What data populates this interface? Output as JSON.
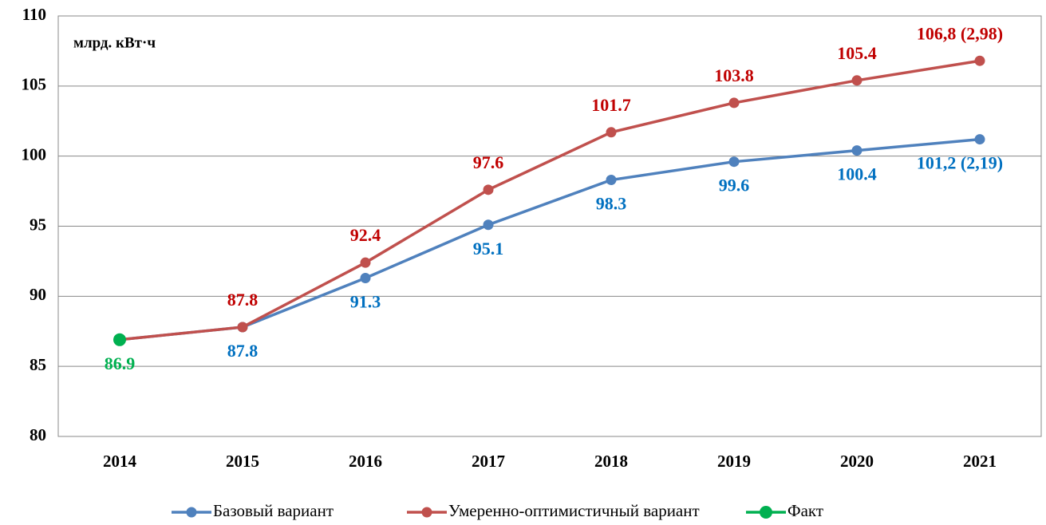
{
  "chart_data": {
    "type": "line",
    "y_label": "млрд. кВт·ч",
    "categories": [
      "2014",
      "2015",
      "2016",
      "2017",
      "2018",
      "2019",
      "2020",
      "2021"
    ],
    "series": [
      {
        "name": "Базовый вариант",
        "color": "#4f81bd",
        "label_color": "#0070c0",
        "label_position": "below",
        "values": [
          86.9,
          87.8,
          91.3,
          95.1,
          98.3,
          99.6,
          100.4,
          101.2
        ],
        "value_labels": [
          null,
          "87.8",
          "91.3",
          "95.1",
          "98.3",
          "99.6",
          "100.4",
          "101,2 (2,19)"
        ]
      },
      {
        "name": "Умеренно-оптимистичный вариант",
        "color": "#c0504d",
        "label_color": "#c00000",
        "label_position": "above",
        "values": [
          86.9,
          87.8,
          92.4,
          97.6,
          101.7,
          103.8,
          105.4,
          106.8
        ],
        "value_labels": [
          null,
          "87.8",
          "92.4",
          "97.6",
          "101.7",
          "103.8",
          "105.4",
          "106,8 (2,98)"
        ]
      },
      {
        "name": "Факт",
        "color": "#00b050",
        "label_color": "#00b050",
        "label_position": "below",
        "values": [
          86.9,
          null,
          null,
          null,
          null,
          null,
          null,
          null
        ],
        "value_labels": [
          "86.9",
          null,
          null,
          null,
          null,
          null,
          null,
          null
        ]
      }
    ],
    "ylim": [
      80,
      110
    ],
    "yticks": [
      80,
      85,
      90,
      95,
      100,
      105,
      110
    ],
    "grid": true,
    "legend": "bottom"
  }
}
